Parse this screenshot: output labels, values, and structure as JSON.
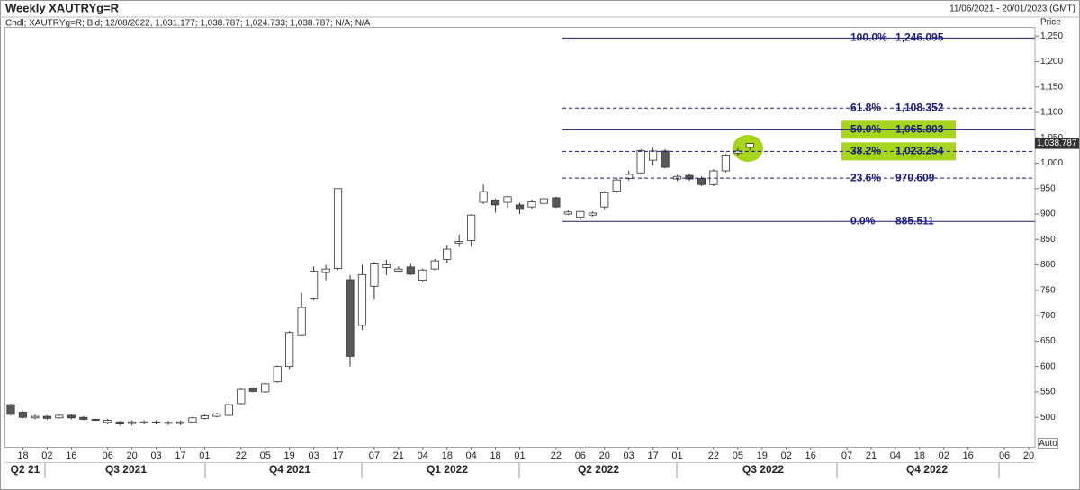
{
  "chart_data": {
    "type": "candlestick",
    "title": "Weekly XAUTRYg=R",
    "subtitle": "Cndl; XAUTRYg=R; Bid; 12/08/2022, 1,031.177; 1,038.787; 1,024.733; 1,038.787; N/A; N/A",
    "date_range": "11/06/2021 - 20/01/2023 (GMT)",
    "y_axis_label": "Price",
    "scale_mode": "Auto",
    "categories": [
      null,
      "18",
      null,
      "02",
      null,
      "16",
      null,
      null,
      "06",
      null,
      "20",
      null,
      "03",
      null,
      "17",
      null,
      "01",
      null,
      null,
      "22",
      null,
      "05",
      null,
      "19",
      null,
      "03",
      null,
      "17",
      null,
      null,
      "07",
      null,
      "21",
      null,
      "04",
      null,
      "18",
      null,
      "04",
      null,
      "18",
      null,
      "01",
      null,
      null,
      "22",
      null,
      "06",
      null,
      "20",
      null,
      "03",
      null,
      "17",
      null,
      "01",
      null,
      null,
      "22",
      null,
      "05",
      null,
      "19",
      null,
      "02",
      null,
      "16",
      null,
      null,
      "07",
      null,
      "21",
      null,
      "04",
      null,
      "18",
      null,
      "02",
      null,
      "16",
      null,
      null,
      "06",
      null,
      "20"
    ],
    "quarters": [
      "Q2 21",
      "Q3 2021",
      "Q4 2021",
      "Q1 2022",
      "Q2 2022",
      "Q3 2022",
      "Q4 2022"
    ],
    "ohlc": {
      "up_color": "#ffffff",
      "down_color": "#595959",
      "open": [
        525,
        510,
        499,
        502,
        499,
        504,
        500,
        496,
        490,
        491,
        488,
        490,
        491,
        490,
        488,
        491,
        498,
        502,
        504,
        527,
        557,
        550,
        570,
        600,
        661,
        733,
        785,
        793,
        771,
        681,
        758,
        795,
        788,
        796,
        770,
        792,
        811,
        843,
        848,
        923,
        927,
        923,
        918,
        914,
        921,
        932,
        900,
        894,
        898,
        914,
        945,
        970,
        981,
        1006,
        1024,
        969,
        976,
        970,
        958,
        985,
        1020,
        1031.177,
        null,
        null,
        null,
        null,
        null,
        null,
        null,
        null,
        null,
        null,
        null,
        null,
        null,
        null,
        null,
        null,
        null,
        null,
        null,
        null,
        null,
        null,
        null
      ],
      "high": [
        527,
        512,
        505,
        504,
        506,
        506,
        502,
        497,
        497,
        493,
        494,
        494,
        494,
        493,
        494,
        501,
        506,
        509,
        532,
        557,
        559,
        568,
        602,
        670,
        745,
        797,
        800,
        950,
        780,
        800,
        805,
        810,
        797,
        802,
        793,
        812,
        838,
        860,
        900,
        958,
        930,
        936,
        922,
        928,
        933,
        934,
        907,
        906,
        905,
        945,
        972,
        985,
        1028,
        1030,
        1028,
        977,
        980,
        974,
        988,
        1018,
        1030,
        1038.787,
        null,
        null,
        null,
        null,
        null,
        null,
        null,
        null,
        null,
        null,
        null,
        null,
        null,
        null,
        null,
        null,
        null,
        null,
        null,
        null,
        null,
        null,
        null
      ],
      "low": [
        504,
        498,
        496,
        495,
        497,
        496,
        494,
        493,
        486,
        484,
        484,
        486,
        486,
        485,
        485,
        490,
        496,
        500,
        502,
        525,
        549,
        548,
        568,
        595,
        660,
        730,
        770,
        790,
        600,
        672,
        732,
        780,
        785,
        780,
        766,
        790,
        804,
        836,
        836,
        920,
        903,
        912,
        900,
        910,
        918,
        912,
        898,
        888,
        895,
        908,
        942,
        966,
        978,
        995,
        990,
        965,
        965,
        955,
        955,
        982,
        1015,
        1024.733,
        null,
        null,
        null,
        null,
        null,
        null,
        null,
        null,
        null,
        null,
        null,
        null,
        null,
        null,
        null,
        null,
        null,
        null,
        null,
        null,
        null,
        null,
        null
      ],
      "close": [
        506,
        500,
        502,
        498,
        504,
        499,
        496,
        495,
        494,
        487,
        491,
        491,
        490,
        489,
        491,
        499,
        503,
        507,
        525,
        555,
        551,
        566,
        600,
        667,
        716,
        788,
        792,
        950,
        620,
        781,
        802,
        800,
        792,
        782,
        790,
        808,
        831,
        846,
        898,
        944,
        918,
        934,
        909,
        924,
        930,
        914,
        904,
        905,
        902,
        942,
        967,
        978,
        1025,
        1024,
        992,
        974,
        969,
        958,
        985,
        1016,
        1024,
        1038.787,
        null,
        null,
        null,
        null,
        null,
        null,
        null,
        null,
        null,
        null,
        null,
        null,
        null,
        null,
        null,
        null,
        null,
        null,
        null,
        null,
        null,
        null,
        null
      ]
    },
    "ylim": [
      442,
      1268
    ],
    "yticks": [
      500,
      550,
      600,
      650,
      700,
      750,
      800,
      850,
      900,
      950,
      {
        "value": 1000,
        "label": "1,000"
      },
      {
        "value": 1050,
        "label": "1,050"
      },
      {
        "value": 1100,
        "label": "1,100"
      },
      {
        "value": 1150,
        "label": "1,150"
      },
      {
        "value": 1200,
        "label": "1,200"
      },
      {
        "value": 1250,
        "label": "1,250"
      }
    ],
    "last_price": {
      "value": 1038.787,
      "label": "1,038.787"
    },
    "fibonacci": {
      "color": "#1a1a80",
      "highlight_color": "#a6d51b",
      "levels": [
        {
          "percent": "100.0%",
          "price": {
            "value": 1246.095,
            "label": "1,246.095"
          },
          "style": "solid",
          "highlighted": false
        },
        {
          "percent": "61.8%",
          "price": {
            "value": 1108.352,
            "label": "1,108.352"
          },
          "style": "dashed",
          "highlighted": false
        },
        {
          "percent": "50.0%",
          "price": {
            "value": 1065.803,
            "label": "1,065.803"
          },
          "style": "solid",
          "highlighted": true
        },
        {
          "percent": "38.2%",
          "price": {
            "value": 1023.254,
            "label": "1,023.254"
          },
          "style": "dashed",
          "highlighted": true
        },
        {
          "percent": "23.6%",
          "price": {
            "value": 970.609,
            "label": "970.609"
          },
          "style": "dashed",
          "highlighted": false
        },
        {
          "percent": "0.0%",
          "price": {
            "value": 885.511,
            "label": "885.511"
          },
          "style": "solid",
          "highlighted": false
        }
      ]
    }
  }
}
